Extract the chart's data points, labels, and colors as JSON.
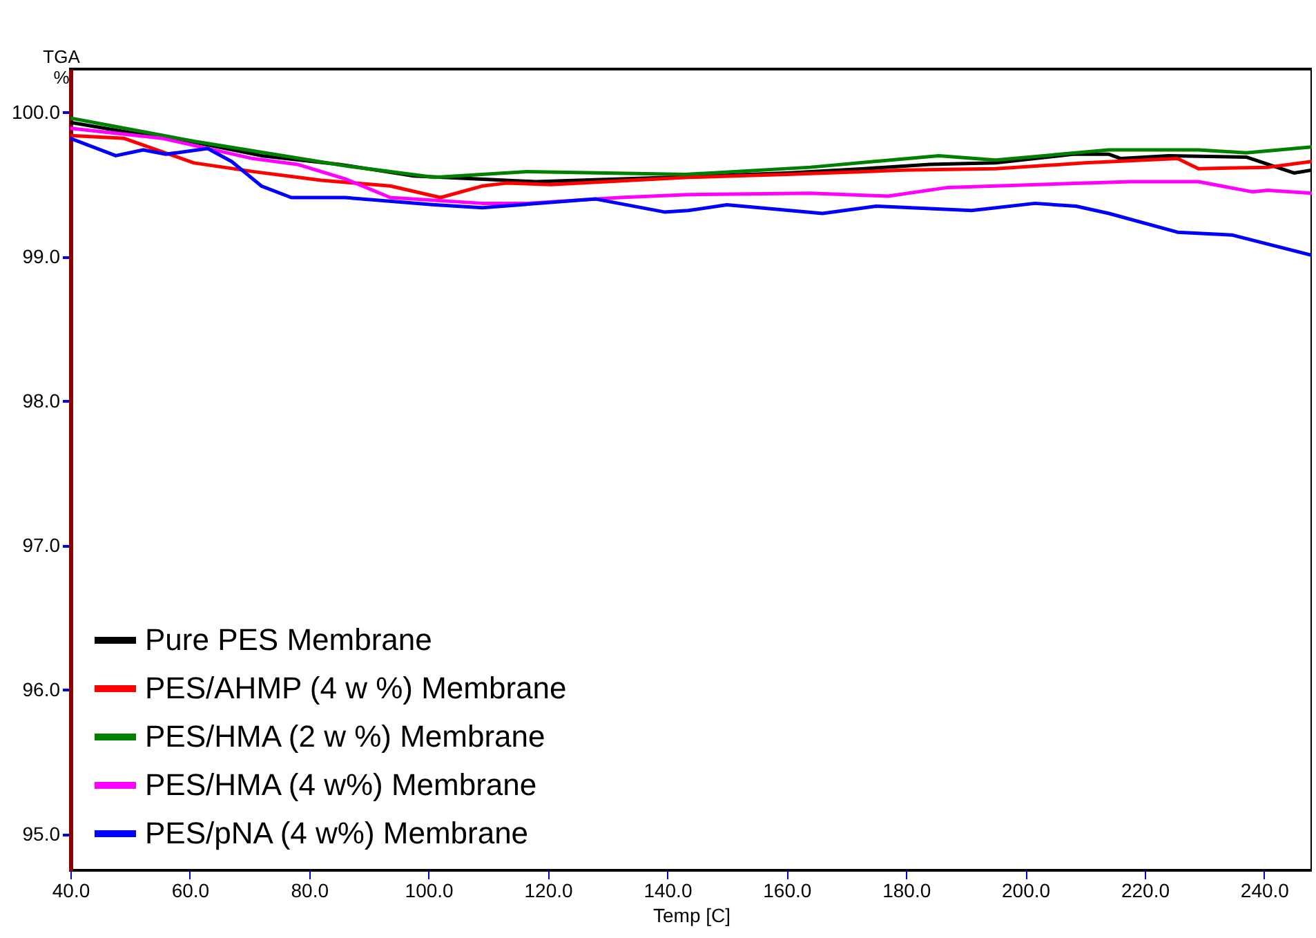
{
  "chart_data": {
    "type": "line",
    "xlabel": "Temp  [C]",
    "ylabel": "TGA\n%",
    "xlim": [
      40,
      248
    ],
    "ylim": [
      94.75,
      100.3
    ],
    "xticks": [
      {
        "value": 40,
        "label": "40.0"
      },
      {
        "value": 60,
        "label": "60.0"
      },
      {
        "value": 80,
        "label": "80.0"
      },
      {
        "value": 100,
        "label": "100.0"
      },
      {
        "value": 120,
        "label": "120.0"
      },
      {
        "value": 140,
        "label": "140.0"
      },
      {
        "value": 160,
        "label": "160.0"
      },
      {
        "value": 180,
        "label": "180.0"
      },
      {
        "value": 200,
        "label": "200.0"
      },
      {
        "value": 220,
        "label": "220.0"
      },
      {
        "value": 240,
        "label": "240.0"
      }
    ],
    "yticks": [
      {
        "value": 95,
        "label": "95.0"
      },
      {
        "value": 96,
        "label": "96.0"
      },
      {
        "value": 97,
        "label": "97.0"
      },
      {
        "value": 98,
        "label": "98.0"
      },
      {
        "value": 99,
        "label": "99.0"
      },
      {
        "value": 100,
        "label": "100.0"
      }
    ],
    "grid": false,
    "legend": "bottom left",
    "marker": "none",
    "line_style": "solid",
    "series": [
      {
        "name": "Pure PES Membrane",
        "color": "#000000",
        "x": [
          40,
          50,
          60,
          72,
          85,
          97.5,
          118,
          140.5,
          160,
          173,
          184,
          195,
          208,
          214,
          216,
          224,
          237,
          245,
          248
        ],
        "values": [
          99.93,
          99.86,
          99.8,
          99.7,
          99.64,
          99.56,
          99.52,
          99.55,
          99.58,
          99.61,
          99.64,
          99.65,
          99.71,
          99.71,
          99.68,
          99.7,
          99.69,
          99.58,
          99.6
        ]
      },
      {
        "name": "PES/AHMP (4 w %) Membrane",
        "color": "#ff0000",
        "x": [
          40,
          49,
          60.7,
          70.6,
          82,
          93.6,
          102,
          109,
          113,
          120.5,
          143.5,
          160,
          179.5,
          195,
          210,
          225.5,
          229,
          240.7,
          248
        ],
        "values": [
          99.84,
          99.82,
          99.65,
          99.59,
          99.53,
          99.49,
          99.41,
          99.49,
          99.51,
          99.5,
          99.55,
          99.57,
          99.6,
          99.61,
          99.65,
          99.68,
          99.61,
          99.62,
          99.66
        ]
      },
      {
        "name": "PES/HMA (2 w %) Membrane",
        "color": "#008000",
        "x": [
          40,
          60.7,
          86,
          101,
          116.5,
          143,
          164,
          185.5,
          195,
          214,
          229,
          237,
          248
        ],
        "values": [
          99.96,
          99.8,
          99.63,
          99.55,
          99.59,
          99.57,
          99.62,
          99.7,
          99.67,
          99.74,
          99.74,
          99.72,
          99.76
        ]
      },
      {
        "name": "PES/HMA (4 w%) Membrane",
        "color": "#ff00ff",
        "x": [
          40,
          55.4,
          70.6,
          78,
          86,
          93.6,
          109,
          116.5,
          132,
          143.5,
          164,
          177,
          187,
          217.7,
          229,
          238,
          240.6,
          248
        ],
        "values": [
          99.89,
          99.82,
          99.68,
          99.64,
          99.54,
          99.41,
          99.37,
          99.37,
          99.41,
          99.43,
          99.44,
          99.42,
          99.48,
          99.52,
          99.52,
          99.45,
          99.46,
          99.44
        ]
      },
      {
        "name": "PES/pNA (4 w%) Membrane",
        "color": "#0000ff",
        "x": [
          40,
          47.6,
          52.2,
          56,
          63,
          67,
          72,
          77,
          86,
          101,
          109,
          128,
          139.5,
          143.5,
          150,
          166,
          175,
          191,
          201.6,
          208.5,
          214,
          225.5,
          234.7,
          248
        ],
        "values": [
          99.82,
          99.7,
          99.74,
          99.71,
          99.75,
          99.66,
          99.49,
          99.41,
          99.41,
          99.36,
          99.34,
          99.4,
          99.31,
          99.32,
          99.36,
          99.3,
          99.35,
          99.32,
          99.37,
          99.35,
          99.3,
          99.17,
          99.15,
          99.01
        ]
      }
    ]
  }
}
